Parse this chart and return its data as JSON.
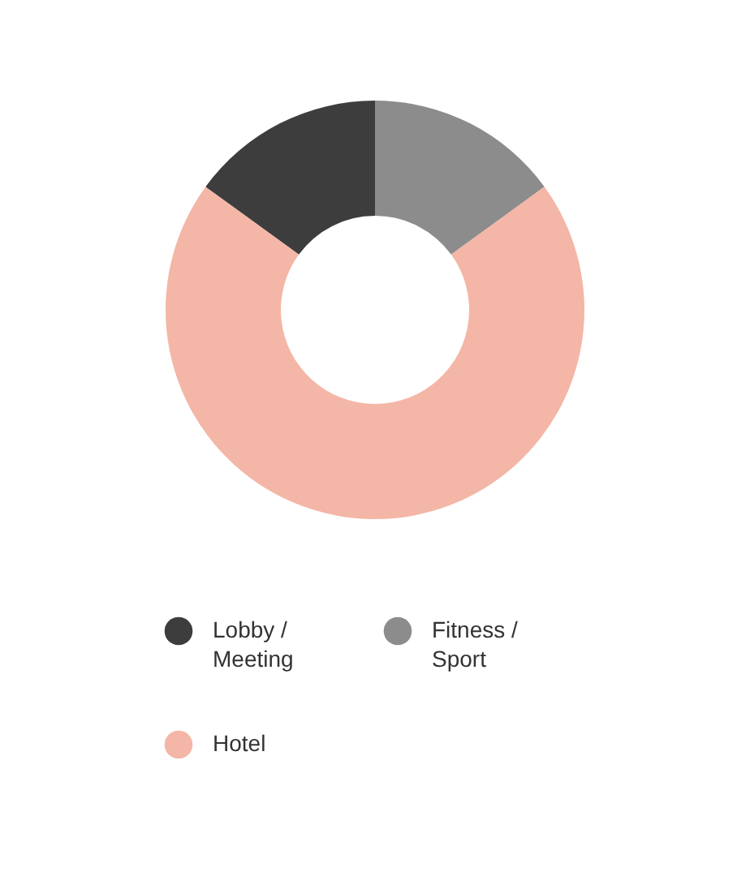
{
  "chart_data": {
    "type": "donut",
    "categories": [
      "Lobby / Meeting",
      "Fitness / Sport",
      "Hotel"
    ],
    "values": [
      15,
      15,
      70
    ],
    "colors": [
      "#3d3d3d",
      "#8c8c8c",
      "#f4b6a6"
    ],
    "legend": "bottom"
  }
}
